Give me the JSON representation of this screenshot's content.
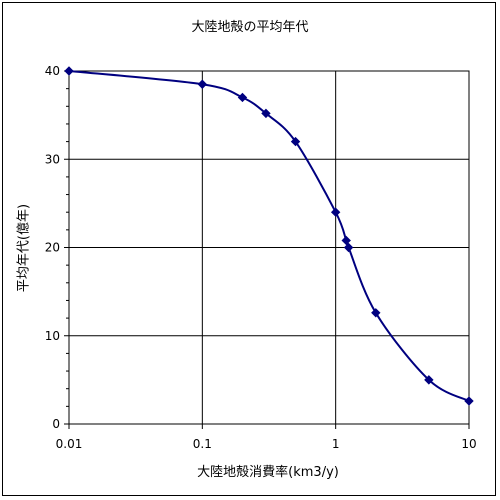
{
  "chart_data": {
    "type": "scatter",
    "title": "大陸地殻の平均年代",
    "xlabel": "大陸地殻消費率(km3/y)",
    "ylabel": "平均年代(億年)",
    "x_scale": "log",
    "xlim": [
      0.01,
      10
    ],
    "ylim": [
      0,
      40
    ],
    "x_ticks": [
      0.01,
      0.1,
      1,
      10
    ],
    "x_tick_labels": [
      "0.01",
      "0.1",
      "1",
      "10"
    ],
    "y_ticks": [
      0,
      10,
      20,
      30,
      40
    ],
    "y_tick_labels": [
      "0",
      "10",
      "20",
      "30",
      "40"
    ],
    "grid": true,
    "series": [
      {
        "color": "#000080",
        "marker": "diamond",
        "line": "smooth",
        "x": [
          0.01,
          0.1,
          0.2,
          0.3,
          0.5,
          1,
          1.2,
          1.25,
          2,
          5,
          10
        ],
        "y": [
          40,
          38.5,
          37,
          35.2,
          32,
          24,
          20.8,
          20,
          12.6,
          5,
          2.6
        ]
      }
    ]
  }
}
